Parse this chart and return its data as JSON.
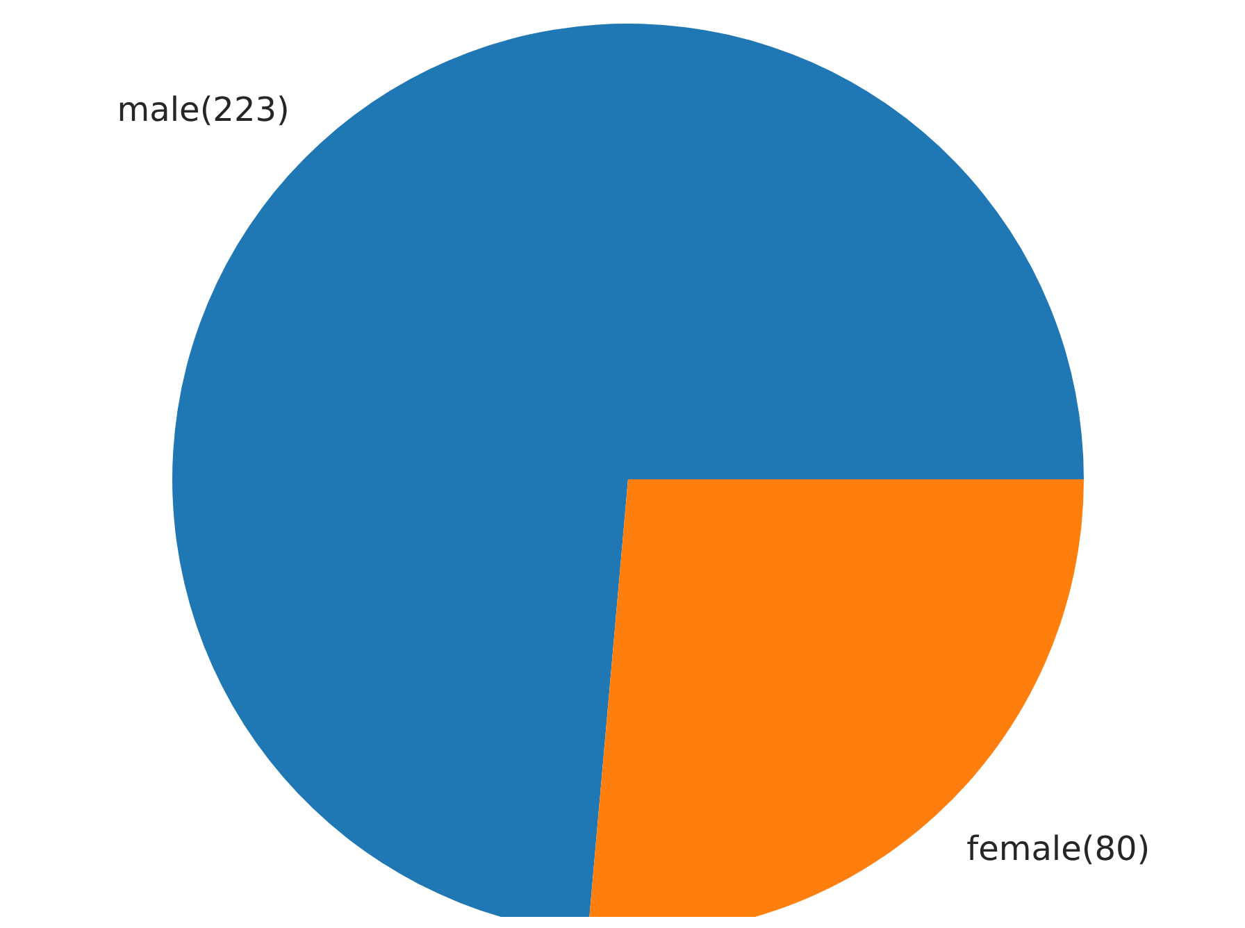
{
  "chart_data": {
    "type": "pie",
    "categories": [
      "male(223)",
      "female(80)"
    ],
    "values": [
      223,
      80
    ],
    "colors": [
      "#1f77b4",
      "#ff7f0e"
    ],
    "legend": false
  }
}
